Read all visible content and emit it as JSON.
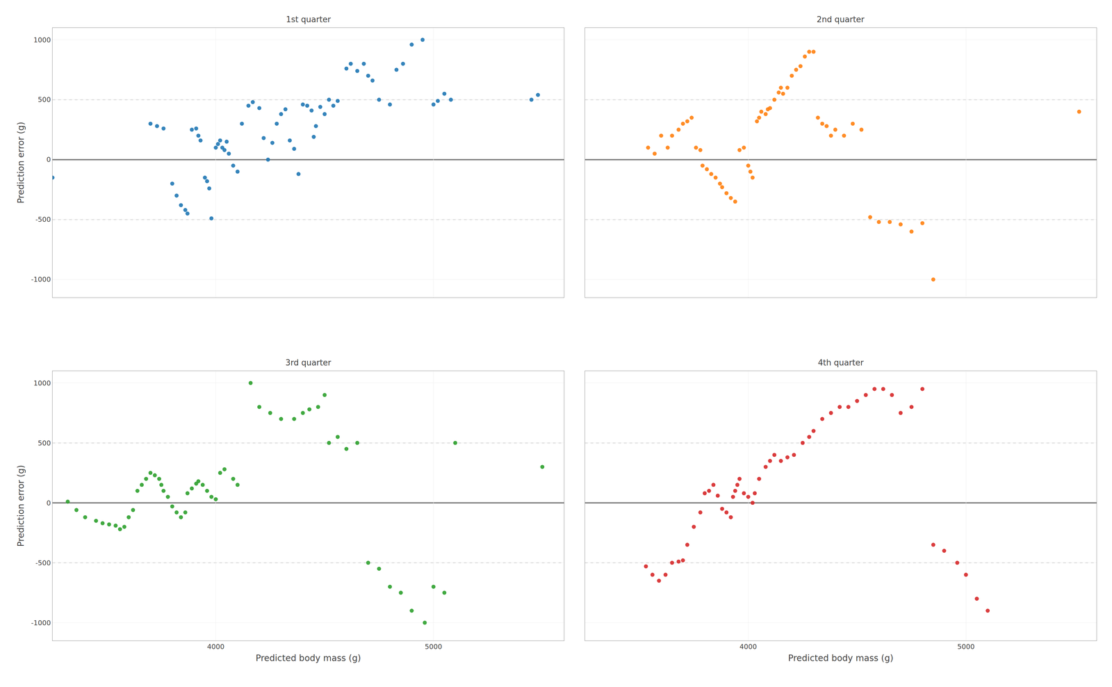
{
  "chart_data": [
    {
      "type": "scatter",
      "title": "1st quarter",
      "ylabel": "Prediction error (g)",
      "x": [
        3250,
        3700,
        3730,
        3760,
        3800,
        3820,
        3840,
        3860,
        3870,
        3890,
        3910,
        3920,
        3930,
        3950,
        3960,
        3970,
        3980,
        4000,
        4010,
        4020,
        4030,
        4040,
        4050,
        4060,
        4080,
        4100,
        4120,
        4150,
        4170,
        4200,
        4220,
        4240,
        4260,
        4280,
        4300,
        4320,
        4340,
        4360,
        4380,
        4400,
        4420,
        4440,
        4450,
        4460,
        4480,
        4500,
        4520,
        4540,
        4560,
        4600,
        4620,
        4650,
        4680,
        4700,
        4720,
        4750,
        4800,
        4830,
        4860,
        4900,
        4950,
        5000,
        5020,
        5050,
        5080,
        5450,
        5480
      ],
      "values": [
        -150,
        300,
        280,
        260,
        -200,
        -300,
        -380,
        -420,
        -450,
        250,
        260,
        200,
        160,
        -150,
        -180,
        -240,
        -490,
        100,
        130,
        160,
        100,
        80,
        150,
        50,
        -50,
        -100,
        300,
        450,
        480,
        430,
        180,
        0,
        140,
        300,
        380,
        420,
        160,
        90,
        -120,
        460,
        450,
        410,
        190,
        280,
        440,
        380,
        500,
        450,
        490,
        760,
        800,
        740,
        800,
        700,
        660,
        500,
        460,
        750,
        800,
        960,
        1000,
        460,
        490,
        550,
        500,
        500,
        540
      ],
      "xlim": [
        3250,
        5600
      ],
      "ylim": [
        -1150,
        1100
      ],
      "xticks": [
        4000,
        5000
      ],
      "yticks": [
        -1000,
        -500,
        0,
        500,
        1000
      ],
      "grid": true,
      "tick_labels": "y",
      "reference_lines": [
        {
          "value": 500,
          "color": "#aaaaaa",
          "line_style": "dashed"
        },
        {
          "value": -500,
          "color": "#aaaaaa",
          "line_style": "dashed"
        },
        {
          "value": 0,
          "color": "#000000",
          "line_style": "solid"
        }
      ]
    },
    {
      "type": "scatter",
      "title": "2nd quarter",
      "x": [
        3540,
        3570,
        3600,
        3630,
        3650,
        3680,
        3700,
        3720,
        3740,
        3760,
        3780,
        3790,
        3810,
        3830,
        3850,
        3870,
        3880,
        3900,
        3920,
        3940,
        3960,
        3980,
        4000,
        4010,
        4020,
        4040,
        4050,
        4060,
        4080,
        4090,
        4100,
        4120,
        4140,
        4150,
        4160,
        4180,
        4200,
        4220,
        4240,
        4260,
        4280,
        4300,
        4320,
        4340,
        4360,
        4380,
        4400,
        4440,
        4480,
        4520,
        4560,
        4600,
        4650,
        4700,
        4750,
        4800,
        4850,
        5520
      ],
      "values": [
        100,
        50,
        200,
        100,
        200,
        250,
        300,
        320,
        350,
        100,
        80,
        -50,
        -80,
        -120,
        -150,
        -200,
        -230,
        -280,
        -320,
        -350,
        80,
        100,
        -50,
        -100,
        -150,
        320,
        350,
        400,
        380,
        420,
        430,
        500,
        560,
        600,
        550,
        600,
        700,
        750,
        780,
        860,
        900,
        900,
        350,
        300,
        280,
        200,
        250,
        200,
        300,
        250,
        -480,
        -520,
        -520,
        -540,
        -600,
        -530,
        -1000,
        400
      ],
      "xlim": [
        3250,
        5600
      ],
      "ylim": [
        -1150,
        1100
      ],
      "xticks": [
        4000,
        5000
      ],
      "yticks": [
        -1000,
        -500,
        0,
        500,
        1000
      ],
      "grid": true,
      "tick_labels": false,
      "reference_lines": [
        {
          "value": 500,
          "color": "#aaaaaa",
          "line_style": "dashed"
        },
        {
          "value": -500,
          "color": "#aaaaaa",
          "line_style": "dashed"
        },
        {
          "value": 0,
          "color": "#000000",
          "line_style": "solid"
        }
      ]
    },
    {
      "type": "scatter",
      "title": "3rd quarter",
      "xlabel": "Predicted body mass (g)",
      "ylabel": "Prediction error (g)",
      "x": [
        3320,
        3360,
        3400,
        3450,
        3480,
        3510,
        3540,
        3560,
        3580,
        3600,
        3620,
        3640,
        3660,
        3680,
        3700,
        3720,
        3740,
        3750,
        3760,
        3780,
        3800,
        3820,
        3840,
        3860,
        3870,
        3890,
        3910,
        3920,
        3940,
        3960,
        3980,
        4000,
        4020,
        4040,
        4080,
        4100,
        4160,
        4200,
        4250,
        4300,
        4360,
        4400,
        4430,
        4470,
        4500,
        4520,
        4560,
        4600,
        4650,
        4700,
        4750,
        4800,
        4850,
        4900,
        4960,
        5000,
        5050,
        5100,
        5500
      ],
      "values": [
        10,
        -60,
        -120,
        -150,
        -170,
        -180,
        -190,
        -220,
        -200,
        -120,
        -60,
        100,
        150,
        200,
        250,
        230,
        200,
        150,
        100,
        50,
        -30,
        -80,
        -120,
        -80,
        80,
        120,
        160,
        180,
        150,
        100,
        50,
        30,
        250,
        280,
        200,
        150,
        1000,
        800,
        750,
        700,
        700,
        750,
        780,
        800,
        900,
        500,
        550,
        450,
        500,
        -500,
        -550,
        -700,
        -750,
        -900,
        -1000,
        -700,
        -750,
        500,
        300
      ],
      "xlim": [
        3250,
        5600
      ],
      "ylim": [
        -1150,
        1100
      ],
      "xticks": [
        4000,
        5000
      ],
      "yticks": [
        -1000,
        -500,
        0,
        500,
        1000
      ],
      "grid": true,
      "reference_lines": [
        {
          "value": 500,
          "color": "#aaaaaa",
          "line_style": "dashed"
        },
        {
          "value": -500,
          "color": "#aaaaaa",
          "line_style": "dashed"
        },
        {
          "value": 0,
          "color": "#000000",
          "line_style": "solid"
        }
      ]
    },
    {
      "type": "scatter",
      "title": "4th quarter",
      "xlabel": "Predicted body mass (g)",
      "x": [
        3530,
        3560,
        3590,
        3620,
        3650,
        3680,
        3700,
        3720,
        3750,
        3780,
        3800,
        3820,
        3840,
        3860,
        3880,
        3900,
        3920,
        3930,
        3940,
        3950,
        3960,
        3980,
        4000,
        4020,
        4030,
        4050,
        4080,
        4100,
        4120,
        4150,
        4180,
        4210,
        4250,
        4280,
        4300,
        4340,
        4380,
        4420,
        4460,
        4500,
        4540,
        4580,
        4620,
        4660,
        4700,
        4750,
        4800,
        4850,
        4900,
        4960,
        5000,
        5050,
        5100
      ],
      "values": [
        -530,
        -600,
        -650,
        -600,
        -500,
        -490,
        -480,
        -350,
        -200,
        -80,
        80,
        100,
        150,
        60,
        -50,
        -80,
        -120,
        50,
        100,
        150,
        200,
        80,
        50,
        0,
        80,
        200,
        300,
        350,
        400,
        350,
        380,
        400,
        500,
        550,
        600,
        700,
        750,
        800,
        800,
        850,
        900,
        950,
        950,
        900,
        750,
        800,
        950,
        -350,
        -400,
        -500,
        -600,
        -800,
        -900
      ],
      "xlim": [
        3250,
        5600
      ],
      "ylim": [
        -1150,
        1100
      ],
      "xticks": [
        4000,
        5000
      ],
      "yticks": [
        -1000,
        -500,
        0,
        500,
        1000
      ],
      "grid": true,
      "tick_labels": "x",
      "reference_lines": [
        {
          "value": 500,
          "color": "#aaaaaa",
          "line_style": "dashed"
        },
        {
          "value": -500,
          "color": "#aaaaaa",
          "line_style": "dashed"
        },
        {
          "value": 0,
          "color": "#000000",
          "line_style": "solid"
        }
      ]
    }
  ]
}
